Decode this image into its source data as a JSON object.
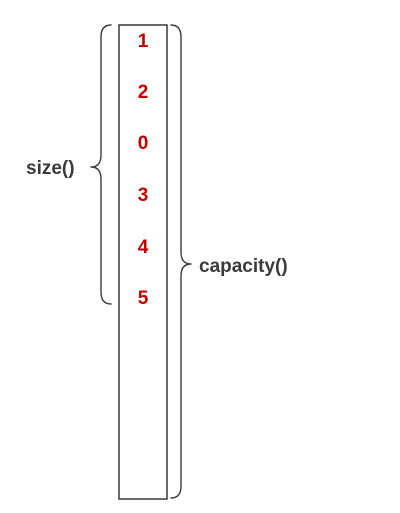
{
  "diagram": {
    "elements": [
      "1",
      "2",
      "0",
      "3",
      "4",
      "5"
    ],
    "size_label": "size()",
    "capacity_label": "capacity()"
  },
  "colors": {
    "element_text": "#c00000",
    "label_text": "#3a3a3a",
    "outline": "#2b2b2b"
  }
}
